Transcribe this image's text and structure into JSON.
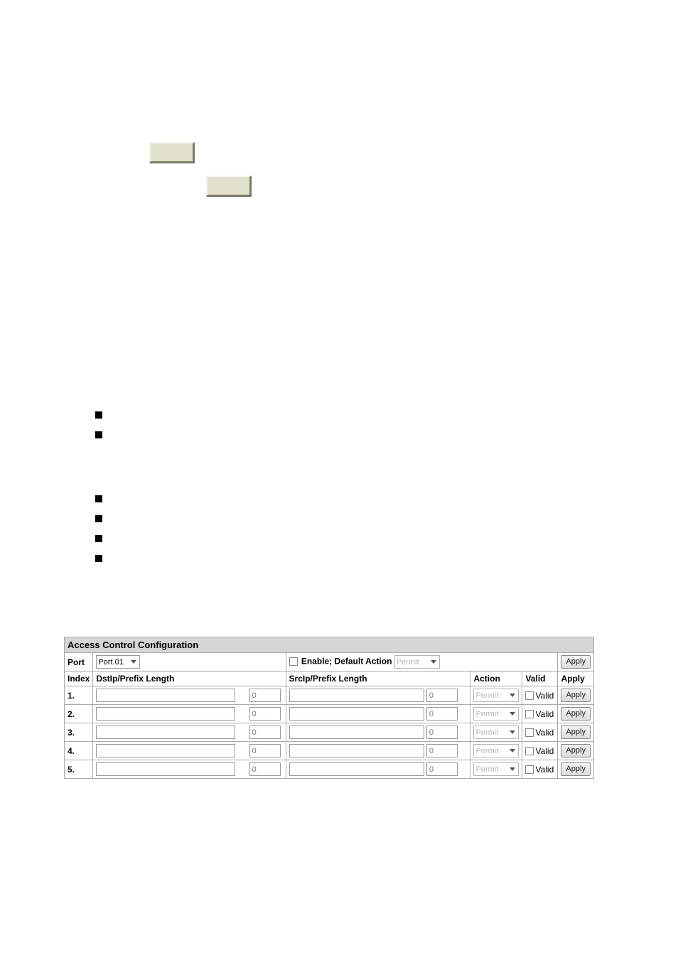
{
  "acl": {
    "title": "Access Control Configuration",
    "port_label": "Port",
    "port_value": "Port.01",
    "enable_label": "Enable; Default Action",
    "default_action": "Permit",
    "apply_header_btn": "Apply",
    "headers": {
      "index": "Index",
      "dstip": "DstIp/Prefix Length",
      "srcip": "SrcIp/Prefix Length",
      "action": "Action",
      "valid": "Valid",
      "apply": "Apply"
    },
    "row_action_option": "Permit",
    "valid_label": "Valid",
    "apply_btn": "Apply",
    "placeholder_zero": "0",
    "rows": [
      {
        "index": "1."
      },
      {
        "index": "2."
      },
      {
        "index": "3."
      },
      {
        "index": "4."
      },
      {
        "index": "5."
      }
    ]
  }
}
